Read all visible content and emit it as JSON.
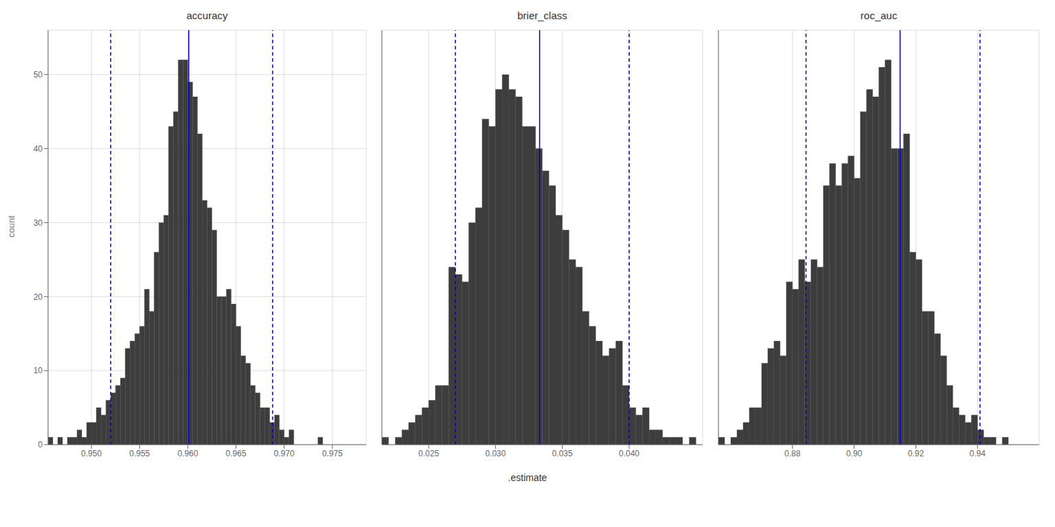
{
  "chart_data": [
    {
      "type": "histogram",
      "title": "accuracy",
      "ylabel": "count",
      "xlim": [
        0.9455,
        0.9785
      ],
      "xticks": [
        {
          "value": 0.95,
          "label": "0.950"
        },
        0.955,
        {
          "value": 0.96,
          "label": "0.960"
        },
        0.965,
        {
          "value": 0.97,
          "label": "0.970"
        },
        0.975
      ],
      "ylim": [
        0,
        56
      ],
      "yticks": [
        0,
        10,
        20,
        30,
        40,
        50
      ],
      "grid": true,
      "series": [
        {
          "type": "histogram",
          "color": "#3d3d3d",
          "bins": [
            0.9455,
            0.946,
            0.9465,
            0.947,
            0.9475,
            0.948,
            0.9485,
            0.949,
            0.9495,
            0.95,
            0.9505,
            0.951,
            0.9515,
            0.952,
            0.9525,
            0.953,
            0.9535,
            0.954,
            0.9545,
            0.955,
            0.9555,
            0.956,
            0.9565,
            0.957,
            0.9575,
            0.958,
            0.9585,
            0.959,
            0.9595,
            0.96,
            0.9605,
            0.961,
            0.9615,
            0.962,
            0.9625,
            0.963,
            0.9635,
            0.964,
            0.9645,
            0.965,
            0.9655,
            0.966,
            0.9665,
            0.967,
            0.9675,
            0.968,
            0.9685,
            0.969,
            0.9695,
            0.97,
            0.9705,
            0.971,
            0.9715,
            0.972,
            0.9725,
            0.973,
            0.9735,
            0.974
          ],
          "values": [
            1,
            0,
            1,
            0,
            1,
            1,
            2,
            1,
            3,
            3,
            5,
            4,
            6,
            7,
            8,
            9,
            13,
            14,
            15,
            16,
            21,
            18,
            26,
            30,
            31,
            43,
            45,
            52,
            52,
            49,
            47,
            42,
            33,
            32,
            29,
            20,
            20,
            21,
            19,
            16,
            12,
            11,
            8,
            7,
            5,
            5,
            3,
            4,
            2,
            1,
            2,
            0,
            0,
            0,
            0,
            0,
            1
          ]
        },
        {
          "type": "vline",
          "color": "#0000cc",
          "line_style": "solid",
          "values": [
            0.9601
          ]
        },
        {
          "type": "vline",
          "color": "#0000cc",
          "line_style": "dashed",
          "values": [
            0.952,
            0.9688
          ]
        }
      ]
    },
    {
      "type": "histogram",
      "title": "brier_class",
      "xlabel": ".estimate",
      "tick_labels": "x",
      "xlim": [
        0.0215,
        0.0455
      ],
      "xticks": [
        0.025,
        {
          "value": 0.03,
          "label": "0.030"
        },
        0.035,
        {
          "value": 0.04,
          "label": "0.040"
        }
      ],
      "ylim": [
        0,
        56
      ],
      "yticks": [
        0,
        20,
        40
      ],
      "grid": true,
      "series": [
        {
          "type": "histogram",
          "color": "#3d3d3d",
          "bins": [
            0.0215,
            0.022,
            0.0225,
            0.023,
            0.0235,
            0.024,
            0.0245,
            0.025,
            0.0255,
            0.026,
            0.0265,
            0.027,
            0.0275,
            0.028,
            0.0285,
            0.029,
            0.0295,
            0.03,
            0.0305,
            0.031,
            0.0315,
            0.032,
            0.0325,
            0.033,
            0.0335,
            0.034,
            0.0345,
            0.035,
            0.0355,
            0.036,
            0.0365,
            0.037,
            0.0375,
            0.038,
            0.0385,
            0.039,
            0.0395,
            0.04,
            0.0405,
            0.041,
            0.0415,
            0.042,
            0.0425,
            0.043,
            0.0435,
            0.044,
            0.0445,
            0.045
          ],
          "values": [
            1,
            0,
            1,
            2,
            3,
            4,
            5,
            6,
            8,
            8,
            24,
            23,
            22,
            30,
            32,
            44,
            43,
            48,
            50,
            48,
            47,
            43,
            43,
            40,
            37,
            35,
            31,
            29,
            25,
            24,
            18,
            16,
            14,
            12,
            13,
            14,
            8,
            5,
            4,
            5,
            2,
            2,
            1,
            1,
            1,
            0,
            1
          ]
        },
        {
          "type": "vline",
          "color": "#0000cc",
          "line_style": "solid",
          "values": [
            0.0333
          ]
        },
        {
          "type": "vline",
          "color": "#0000cc",
          "line_style": "dashed",
          "values": [
            0.027,
            0.04
          ]
        }
      ]
    },
    {
      "type": "histogram",
      "title": "roc_auc",
      "tick_labels": "x",
      "xlim": [
        0.856,
        0.96
      ],
      "xticks": [
        0.88,
        {
          "value": 0.9,
          "label": "0.90"
        },
        0.92,
        0.94
      ],
      "ylim": [
        0,
        56
      ],
      "yticks": [
        0,
        20,
        40
      ],
      "grid": true,
      "series": [
        {
          "type": "histogram",
          "color": "#3d3d3d",
          "bins": [
            0.856,
            0.858,
            0.86,
            0.862,
            0.864,
            0.866,
            0.868,
            0.87,
            0.872,
            0.874,
            0.876,
            0.878,
            0.88,
            0.882,
            0.884,
            0.886,
            0.888,
            0.89,
            0.892,
            0.894,
            0.896,
            0.898,
            0.9,
            0.902,
            0.904,
            0.906,
            0.908,
            0.91,
            0.912,
            0.914,
            0.916,
            0.918,
            0.92,
            0.922,
            0.924,
            0.926,
            0.928,
            0.93,
            0.932,
            0.934,
            0.936,
            0.938,
            0.94,
            0.942,
            0.944,
            0.946,
            0.948,
            0.95,
            0.952,
            0.954
          ],
          "values": [
            1,
            0,
            1,
            2,
            3,
            5,
            5,
            11,
            13,
            14,
            12,
            22,
            21,
            25,
            22,
            25,
            24,
            35,
            38,
            35,
            38,
            39,
            36,
            45,
            48,
            47,
            51,
            52,
            40,
            40,
            42,
            26,
            25,
            18,
            18,
            15,
            12,
            8,
            5,
            4,
            3,
            4,
            2,
            1,
            1,
            0,
            1,
            0,
            0
          ]
        },
        {
          "type": "vline",
          "color": "#0000cc",
          "line_style": "solid",
          "values": [
            0.9149
          ]
        },
        {
          "type": "vline",
          "color": "#0000cc",
          "line_style": "dashed",
          "values": [
            0.8844,
            0.9408
          ]
        }
      ]
    }
  ]
}
